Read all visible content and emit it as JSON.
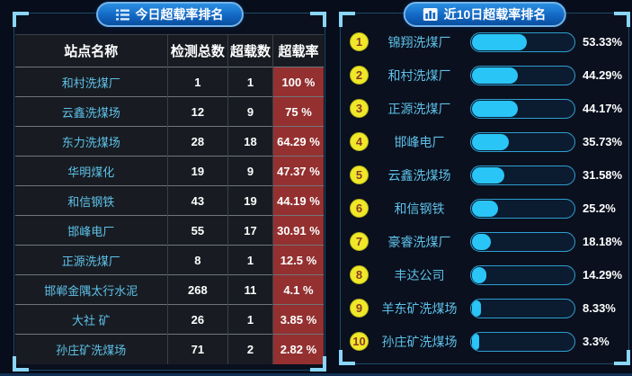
{
  "left_panel": {
    "title": "今日超载率排名",
    "icon": "list-icon"
  },
  "right_panel": {
    "title": "近10日超载率排名",
    "icon": "bar-chart-icon"
  },
  "chart_data": [
    {
      "type": "table",
      "title": "今日超载率排名",
      "columns": [
        "站点名称",
        "检测总数",
        "超载数",
        "超载率"
      ],
      "rows": [
        [
          "和村洗煤厂",
          "1",
          "1",
          "100 %"
        ],
        [
          "云鑫洗煤场",
          "12",
          "9",
          "75 %"
        ],
        [
          "东力洗煤场",
          "28",
          "18",
          "64.29 %"
        ],
        [
          "华明煤化",
          "19",
          "9",
          "47.37 %"
        ],
        [
          "和信钢铁",
          "43",
          "19",
          "44.19 %"
        ],
        [
          "邯峰电厂",
          "55",
          "17",
          "30.91 %"
        ],
        [
          "正源洗煤厂",
          "8",
          "1",
          "12.5 %"
        ],
        [
          "邯郸金隅太行水泥",
          "268",
          "11",
          "4.1 %"
        ],
        [
          "大社 矿",
          "26",
          "1",
          "3.85 %"
        ],
        [
          "孙庄矿洗煤场",
          "71",
          "2",
          "2.82 %"
        ]
      ]
    },
    {
      "type": "bar",
      "orientation": "horizontal",
      "title": "近10日超载率排名",
      "ranks": [
        "1",
        "2",
        "3",
        "4",
        "5",
        "6",
        "7",
        "8",
        "9",
        "10"
      ],
      "categories": [
        "锦翔洗煤厂",
        "和村洗煤厂",
        "正源洗煤厂",
        "邯峰电厂",
        "云鑫洗煤场",
        "和信钢铁",
        "豪睿洗煤厂",
        "丰达公司",
        "羊东矿洗煤场",
        "孙庄矿洗煤场"
      ],
      "values": [
        53.33,
        44.29,
        44.17,
        35.73,
        31.58,
        25.2,
        18.18,
        14.29,
        8.33,
        3.3
      ],
      "labels": [
        "53.33%",
        "44.29%",
        "44.17%",
        "35.73%",
        "31.58%",
        "25.2%",
        "18.18%",
        "14.29%",
        "8.33%",
        "3.3%"
      ],
      "xlim": [
        0,
        100
      ],
      "legend": "none",
      "grid": false
    }
  ],
  "colors": {
    "page_bg": "#070d1a",
    "panel_border": "#1c4a68",
    "corner_bracket": "#8ad6f8",
    "title_pill_gradient_top": "#2b8fe2",
    "title_pill_gradient_bottom": "#0a4fa0",
    "title_pill_border": "#74b4e8",
    "table_bg": "#181c22",
    "site_name_text": "#5ec1e8",
    "rate_cell_bg": "#943030",
    "rank_circle_bg": "#efe829",
    "rank_number_text": "#8b3a29",
    "bar_fill": "#29c5f6",
    "bar_border": "#2e9fd0",
    "bar_track_bg": "#0b1b30"
  }
}
